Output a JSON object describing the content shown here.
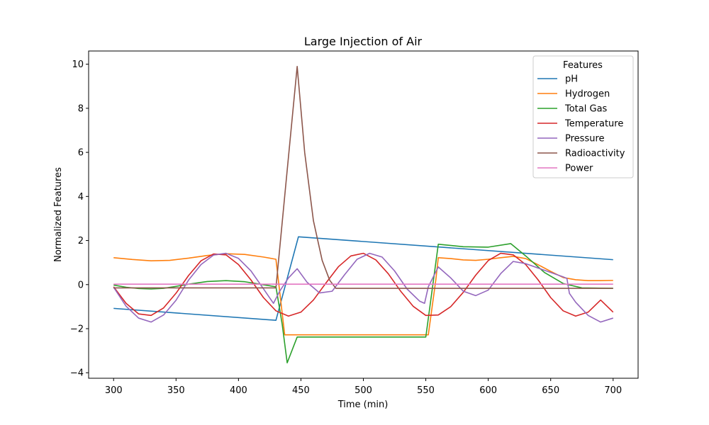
{
  "chart_data": {
    "type": "line",
    "title": "Large Injection of Air",
    "xlabel": "Time (min)",
    "ylabel": "Normalized Features",
    "xlim": [
      280,
      720
    ],
    "ylim": [
      -4.25,
      10.6
    ],
    "xticks": [
      300,
      350,
      400,
      450,
      500,
      550,
      600,
      650,
      700
    ],
    "yticks": [
      -4,
      -2,
      0,
      2,
      4,
      6,
      8,
      10
    ],
    "grid": false,
    "legend": {
      "title": "Features",
      "placement": "top-right"
    },
    "series": [
      {
        "name": "pH",
        "color": "#1f77b4",
        "x": [
          300,
          430,
          448,
          700
        ],
        "y": [
          -1.08,
          -1.62,
          2.17,
          1.13
        ]
      },
      {
        "name": "Hydrogen",
        "color": "#ff7f0e",
        "x": [
          300,
          315,
          330,
          345,
          360,
          375,
          390,
          405,
          420,
          430,
          437,
          445,
          550,
          552,
          558,
          560,
          570,
          580,
          590,
          600,
          610,
          620,
          630,
          640,
          650,
          660,
          670,
          680,
          690,
          700
        ],
        "y": [
          1.22,
          1.14,
          1.08,
          1.1,
          1.2,
          1.32,
          1.4,
          1.37,
          1.25,
          1.15,
          -2.28,
          -2.28,
          -2.28,
          -2.28,
          0.2,
          1.22,
          1.18,
          1.12,
          1.1,
          1.15,
          1.22,
          1.28,
          1.18,
          0.9,
          0.6,
          0.32,
          0.22,
          0.18,
          0.18,
          0.19
        ]
      },
      {
        "name": "Total Gas",
        "color": "#2ca02c",
        "x": [
          300,
          310,
          320,
          330,
          340,
          350,
          360,
          375,
          390,
          405,
          415,
          430,
          435,
          439,
          447,
          550,
          550,
          560,
          580,
          600,
          618,
          630,
          645,
          660,
          675,
          700
        ],
        "y": [
          -0.02,
          -0.12,
          -0.18,
          -0.2,
          -0.17,
          -0.08,
          0.02,
          0.14,
          0.18,
          0.13,
          0.04,
          -0.1,
          -1.8,
          -3.55,
          -2.38,
          -2.38,
          -2.38,
          1.83,
          1.72,
          1.7,
          1.86,
          1.3,
          0.55,
          0.05,
          -0.15,
          -0.17
        ]
      },
      {
        "name": "Temperature",
        "color": "#d62728",
        "x": [
          300,
          310,
          320,
          330,
          340,
          350,
          360,
          370,
          380,
          390,
          400,
          410,
          420,
          430,
          440,
          450,
          460,
          470,
          480,
          490,
          500,
          510,
          520,
          530,
          540,
          550,
          560,
          570,
          580,
          590,
          600,
          610,
          620,
          630,
          640,
          650,
          660,
          670,
          680,
          690,
          700
        ],
        "y": [
          -0.1,
          -0.85,
          -1.33,
          -1.4,
          -1.06,
          -0.39,
          0.41,
          1.08,
          1.39,
          1.35,
          0.91,
          0.21,
          -0.59,
          -1.19,
          -1.43,
          -1.25,
          -0.7,
          0.07,
          0.81,
          1.3,
          1.42,
          1.12,
          0.49,
          -0.31,
          -0.99,
          -1.4,
          -1.38,
          -1.0,
          -0.35,
          0.43,
          1.09,
          1.42,
          1.35,
          0.91,
          0.21,
          -0.59,
          -1.19,
          -1.43,
          -1.25,
          -0.7,
          -1.25
        ]
      },
      {
        "name": "Pressure",
        "color": "#9467bd",
        "x": [
          300,
          310,
          320,
          330,
          340,
          350,
          360,
          370,
          380,
          390,
          400,
          410,
          420,
          428,
          433,
          440,
          447,
          455,
          465,
          475,
          485,
          495,
          505,
          515,
          525,
          535,
          545,
          549,
          552,
          560,
          570,
          580,
          590,
          600,
          610,
          620,
          630,
          640,
          650,
          660,
          663,
          665,
          670,
          680,
          690,
          700
        ],
        "y": [
          -0.12,
          -0.98,
          -1.52,
          -1.7,
          -1.38,
          -0.71,
          0.2,
          0.91,
          1.34,
          1.42,
          1.19,
          0.62,
          -0.19,
          -0.85,
          -0.3,
          0.3,
          0.72,
          0.1,
          -0.38,
          -0.3,
          0.45,
          1.15,
          1.42,
          1.25,
          0.62,
          -0.2,
          -0.75,
          -0.85,
          -0.1,
          0.8,
          0.3,
          -0.3,
          -0.5,
          -0.25,
          0.5,
          1.05,
          0.95,
          0.75,
          0.55,
          0.35,
          0.28,
          -0.4,
          -0.8,
          -1.4,
          -1.7,
          -1.52
        ]
      },
      {
        "name": "Radioactivity",
        "color": "#8c564b",
        "x": [
          300,
          430,
          438,
          447,
          453,
          460,
          467,
          473,
          478,
          700
        ],
        "y": [
          -0.15,
          -0.15,
          4.6,
          9.9,
          6.0,
          2.9,
          1.1,
          0.2,
          -0.17,
          -0.17
        ]
      },
      {
        "name": "Power",
        "color": "#e377c2",
        "x": [
          300,
          700
        ],
        "y": [
          0.02,
          0.02
        ]
      }
    ]
  }
}
